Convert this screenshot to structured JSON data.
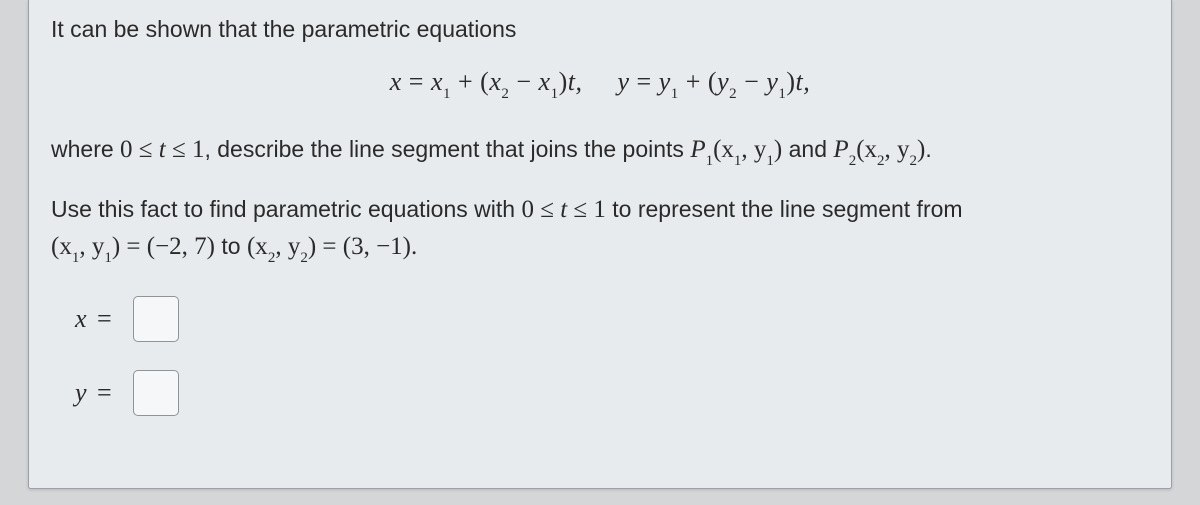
{
  "colors": {
    "page_bg": "#d4d6d8",
    "panel_bg": "#e8ebee",
    "panel_border": "#9aa0a6",
    "text": "#2a2a2a",
    "input_bg": "#f5f7f8",
    "input_border": "#8f9498"
  },
  "typography": {
    "body_font": "Arial",
    "body_size_pt": 17,
    "math_font": "Times New Roman",
    "math_size_pt": 19
  },
  "text": {
    "intro": "It can be shown that the parametric equations",
    "eq_x_lhs": "x",
    "eq_y_lhs": "y",
    "eq_x_rhs_1": "x",
    "eq_x_rhs_2": " + (",
    "eq_x_rhs_3": " − ",
    "eq_x_rhs_4": ")",
    "eq_x_rhs_5": "t,",
    "eq_y_rhs_1": "y",
    "eq_y_rhs_2": " + (",
    "eq_y_rhs_3": " − ",
    "eq_y_rhs_4": ")",
    "eq_y_rhs_5": "t,",
    "sub1": "1",
    "sub2": "2",
    "where_pre": "where ",
    "range_t": "0 ≤ t ≤ 1",
    "where_post": ", describe the line segment that joins the points ",
    "p1": "P",
    "p1_args_open": "(x",
    "comma_sep": ", y",
    "close_paren": ")",
    "and_word": " and ",
    "p2": "P",
    "period": ".",
    "line3_a": "Use this fact to find parametric equations with ",
    "line3_b": " to represent the line segment from",
    "pt1": "(x",
    "pt1_eq": " = (−2, 7)",
    "to_word": " to ",
    "pt2": "(x",
    "pt2_eq": " = (3, −1).",
    "x_eq": "x",
    "y_eq": "y",
    "eq_sign": "="
  },
  "inputs": {
    "x_value": "",
    "y_value": ""
  }
}
